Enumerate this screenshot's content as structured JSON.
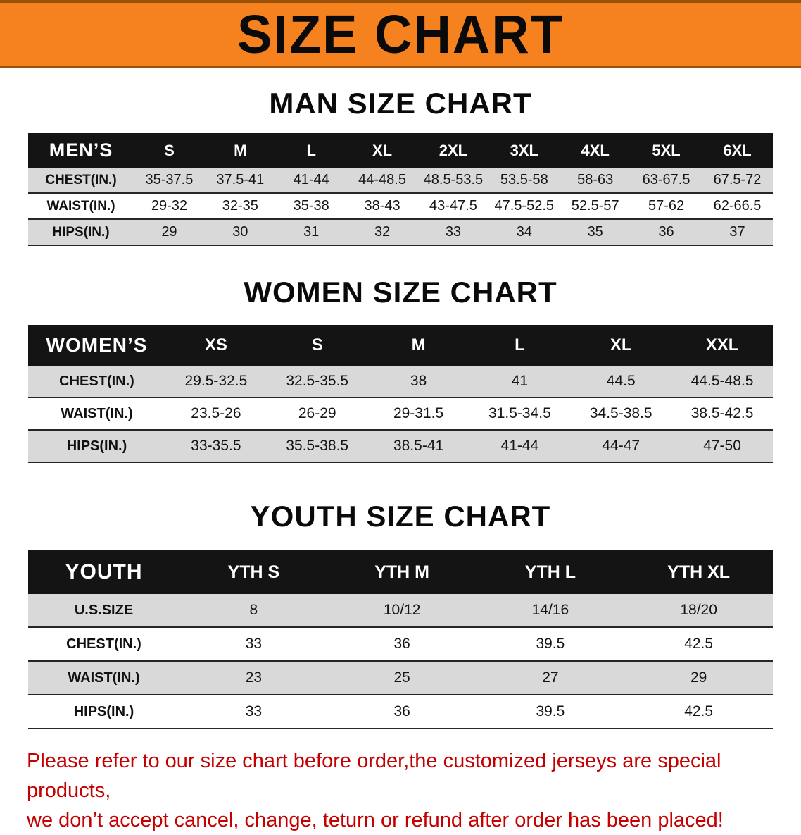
{
  "banner": {
    "title": "SIZE CHART"
  },
  "colors": {
    "banner_bg": "#f6821f",
    "header_bg": "#141414",
    "row_alt": "#d9d9d9",
    "footer_red": "#c40000"
  },
  "sections": [
    {
      "heading": "MAN SIZE CHART",
      "corner": "MEN’S",
      "columns": [
        "S",
        "M",
        "L",
        "XL",
        "2XL",
        "3XL",
        "4XL",
        "5XL",
        "6XL"
      ],
      "rows": [
        {
          "label": "CHEST(IN.)",
          "values": [
            "35-37.5",
            "37.5-41",
            "41-44",
            "44-48.5",
            "48.5-53.5",
            "53.5-58",
            "58-63",
            "63-67.5",
            "67.5-72"
          ]
        },
        {
          "label": "WAIST(IN.)",
          "values": [
            "29-32",
            "32-35",
            "35-38",
            "38-43",
            "43-47.5",
            "47.5-52.5",
            "52.5-57",
            "57-62",
            "62-66.5"
          ]
        },
        {
          "label": "HIPS(IN.)",
          "values": [
            "29",
            "30",
            "31",
            "32",
            "33",
            "34",
            "35",
            "36",
            "37"
          ]
        }
      ]
    },
    {
      "heading": "WOMEN SIZE CHART",
      "corner": "WOMEN’S",
      "columns": [
        "XS",
        "S",
        "M",
        "L",
        "XL",
        "XXL"
      ],
      "rows": [
        {
          "label": "CHEST(IN.)",
          "values": [
            "29.5-32.5",
            "32.5-35.5",
            "38",
            "41",
            "44.5",
            "44.5-48.5"
          ]
        },
        {
          "label": "WAIST(IN.)",
          "values": [
            "23.5-26",
            "26-29",
            "29-31.5",
            "31.5-34.5",
            "34.5-38.5",
            "38.5-42.5"
          ]
        },
        {
          "label": "HIPS(IN.)",
          "values": [
            "33-35.5",
            "35.5-38.5",
            "38.5-41",
            "41-44",
            "44-47",
            "47-50"
          ]
        }
      ]
    },
    {
      "heading": "YOUTH SIZE CHART",
      "corner": "YOUTH",
      "columns": [
        "YTH S",
        "YTH M",
        "YTH L",
        "YTH XL"
      ],
      "rows": [
        {
          "label": "U.S.SIZE",
          "values": [
            "8",
            "10/12",
            "14/16",
            "18/20"
          ]
        },
        {
          "label": "CHEST(IN.)",
          "values": [
            "33",
            "36",
            "39.5",
            "42.5"
          ]
        },
        {
          "label": "WAIST(IN.)",
          "values": [
            "23",
            "25",
            "27",
            "29"
          ]
        },
        {
          "label": "HIPS(IN.)",
          "values": [
            "33",
            "36",
            "39.5",
            "42.5"
          ]
        }
      ]
    }
  ],
  "footer": {
    "lines": [
      "Please refer to our size chart before order,the customized jerseys are special products,",
      "we don’t accept cancel, change, teturn or refund after order has been placed!"
    ]
  }
}
